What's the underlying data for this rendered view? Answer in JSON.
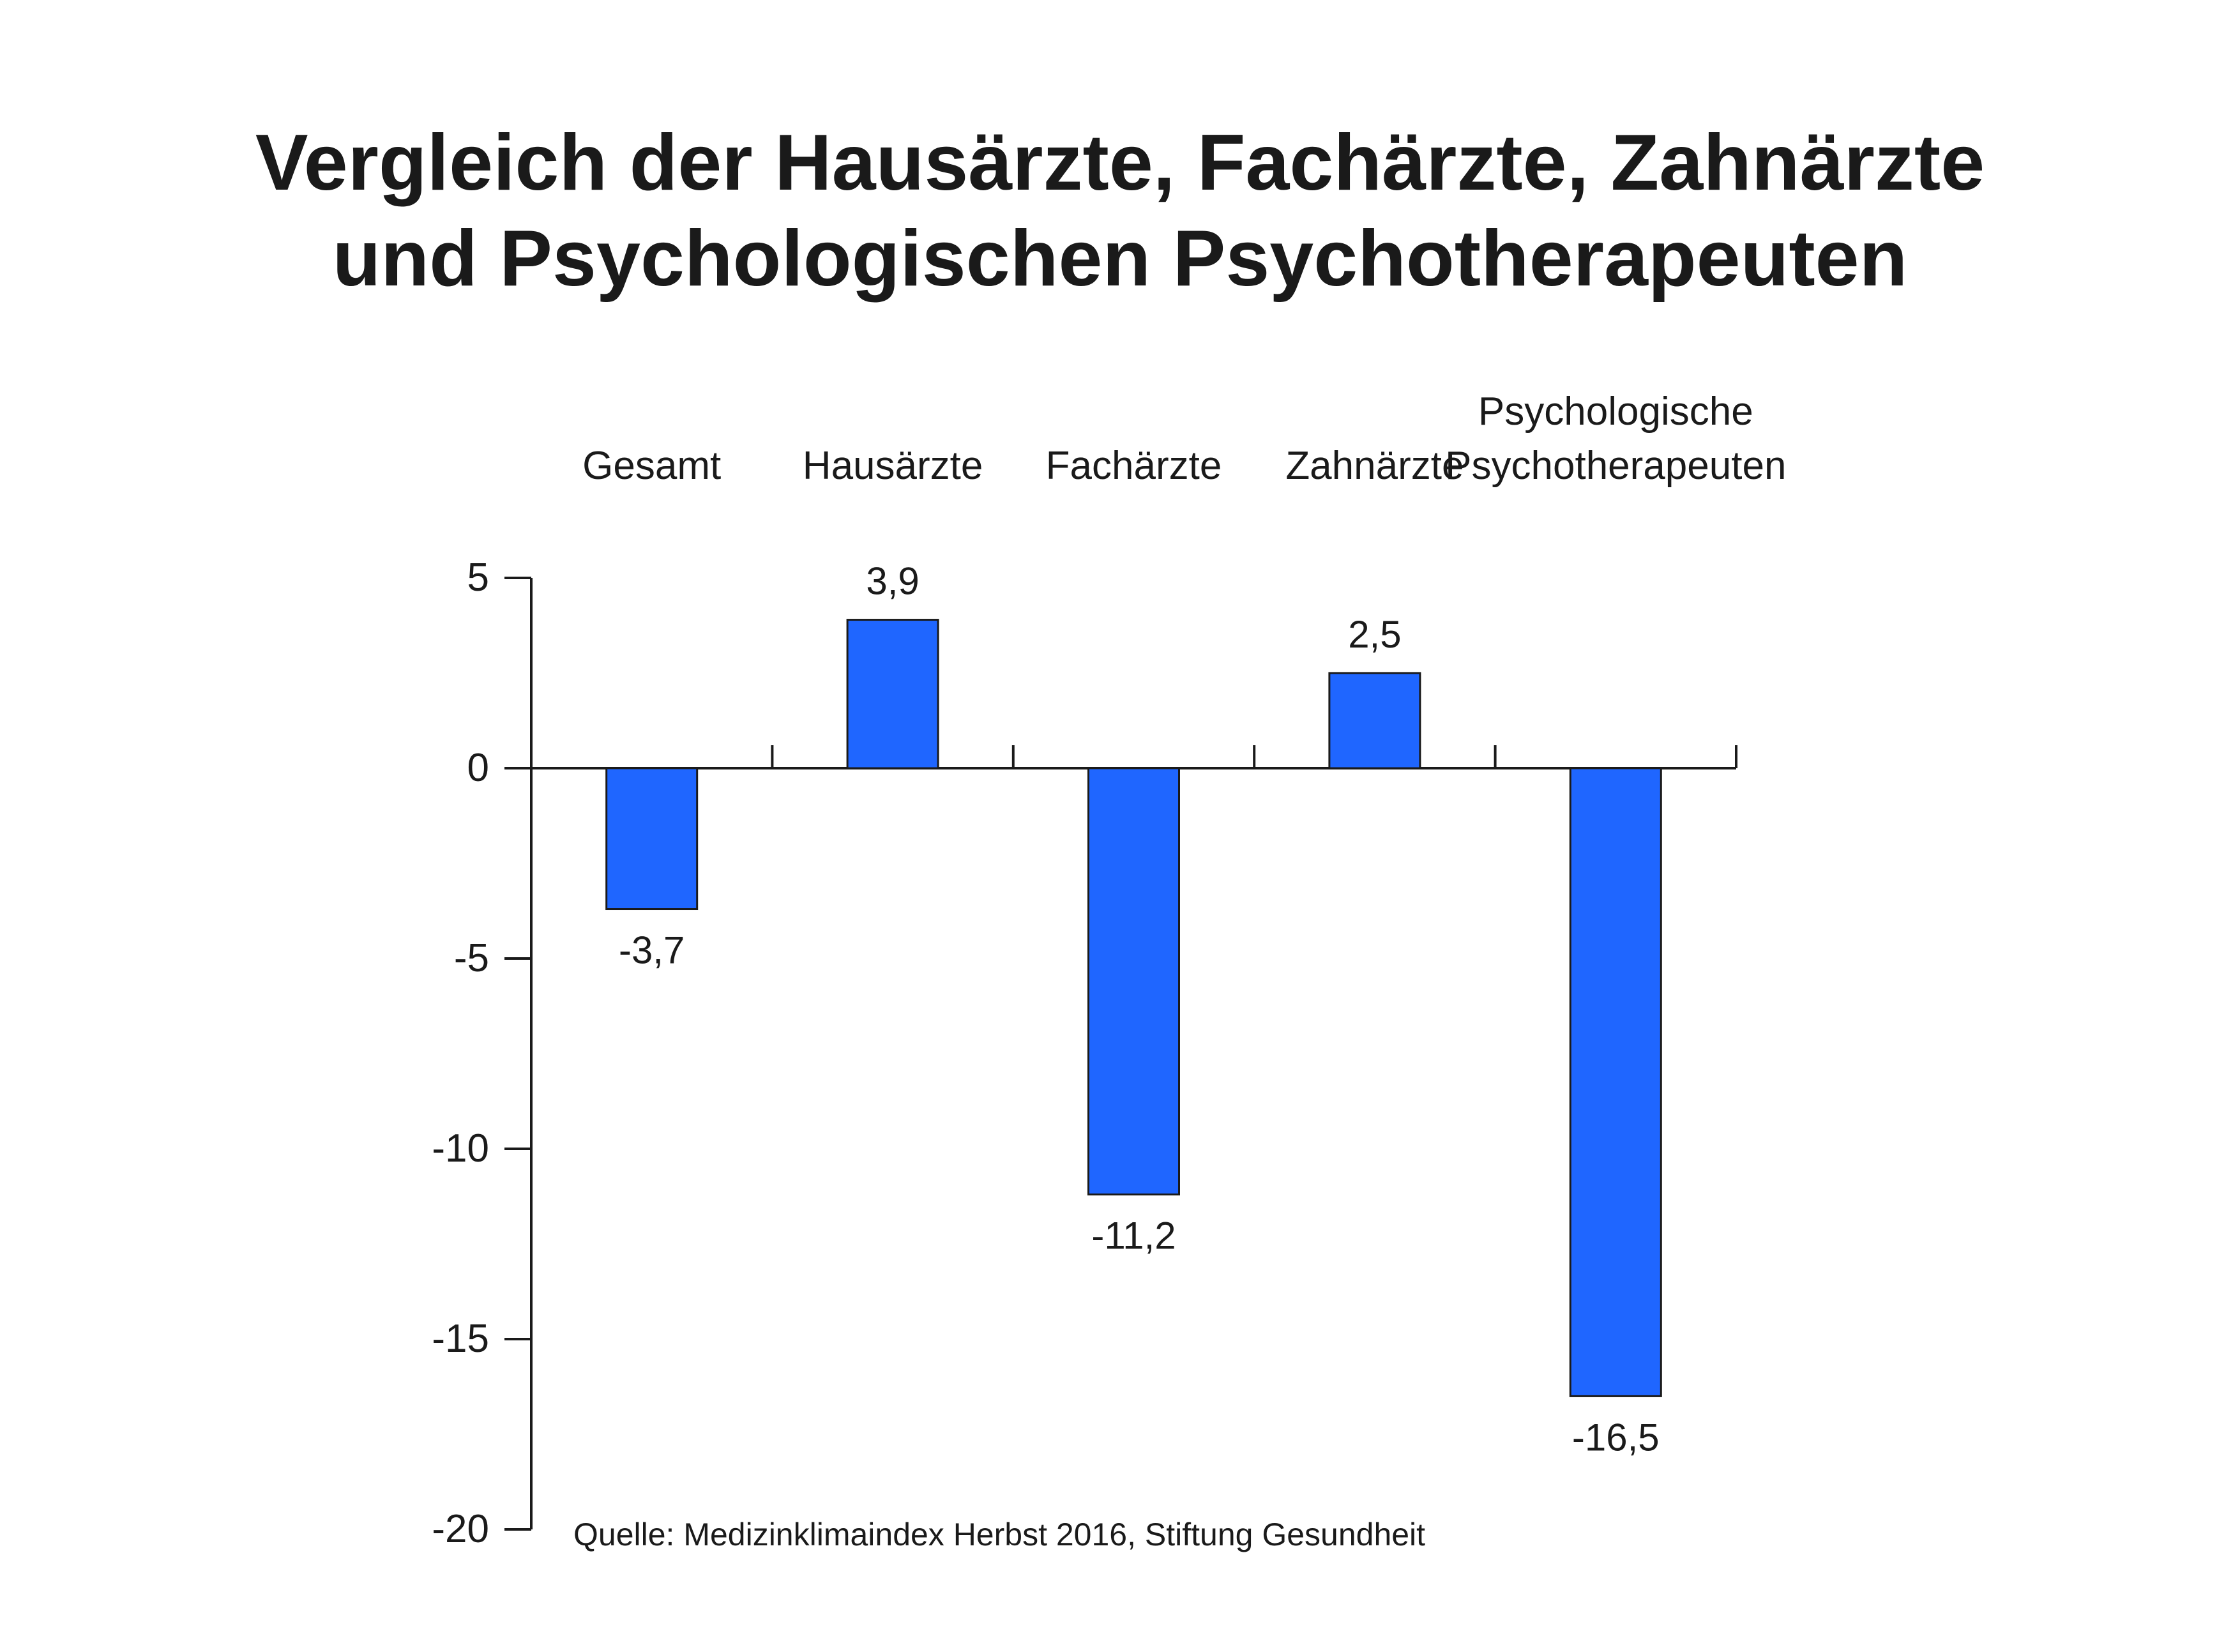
{
  "chart_data": {
    "type": "bar",
    "title_lines": [
      "Vergleich der Hausärzte, Fachärzte, Zahnärzte",
      "und Psychologischen Psychotherapeuten"
    ],
    "categories": [
      [
        "Gesamt"
      ],
      [
        "Hausärzte"
      ],
      [
        "Fachärzte"
      ],
      [
        "Zahnärzte"
      ],
      [
        "Psychologische",
        "Psychotherapeuten"
      ]
    ],
    "values": [
      -3.7,
      3.9,
      -11.2,
      2.5,
      -16.5
    ],
    "value_labels": [
      "-3,7",
      "3,9",
      "-11,2",
      "2,5",
      "-16,5"
    ],
    "y_ticks": [
      5,
      0,
      -5,
      -10,
      -15,
      -20
    ],
    "y_tick_labels": [
      "5",
      "0",
      "-5",
      "-10",
      "-15",
      "-20"
    ],
    "ylim": [
      -20,
      5
    ],
    "bar_color": "#1f66ff",
    "bar_outline": "#1a1a1a",
    "category_label_position": "top",
    "grid": false,
    "legend": "none",
    "source": "Quelle:  Medizinklimaindex Herbst 2016, Stiftung Gesundheit"
  }
}
